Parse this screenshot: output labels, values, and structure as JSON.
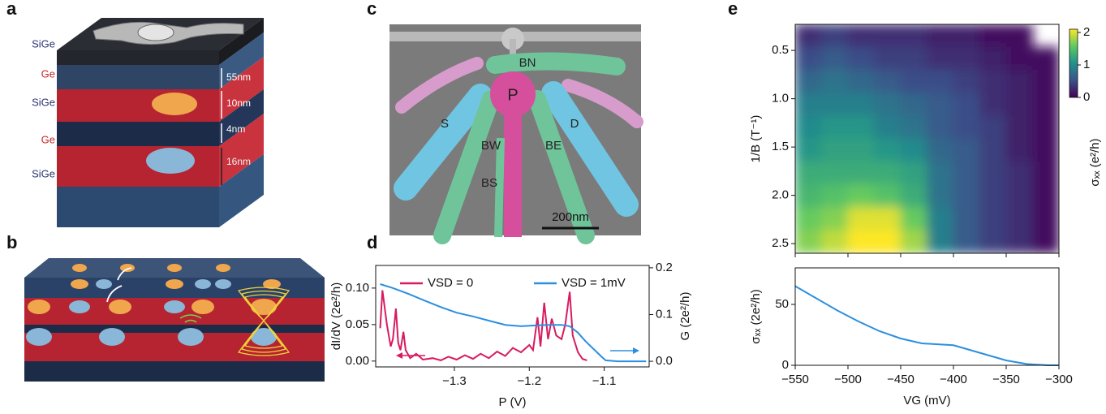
{
  "panel_labels": [
    "a",
    "b",
    "c",
    "d",
    "e"
  ],
  "panel_a": {
    "layers": [
      "SiGe",
      "Ge",
      "SiGe",
      "Ge",
      "SiGe"
    ],
    "thicknesses": [
      "55nm",
      "10nm",
      "4nm",
      "16nm"
    ]
  },
  "panel_c": {
    "gates": [
      "BN",
      "P",
      "S",
      "D",
      "BW",
      "BE",
      "BS"
    ],
    "scale_bar": "200nm"
  },
  "chart_data": [
    {
      "type": "line",
      "xlabel": "P (V)",
      "ylabel": "dI/dV (2e²/h)",
      "y2label": "G (2e²/h)",
      "xlim": [
        -1.405,
        -1.04
      ],
      "xticks": [
        {
          "value": -1.3,
          "label": "−1.3"
        },
        {
          "value": -1.2,
          "label": "−1.2"
        },
        {
          "value": -1.1,
          "label": "−1.1"
        }
      ],
      "ylim": [
        -0.008,
        0.131
      ],
      "yticks": [
        {
          "value": 0,
          "label": "0.00"
        },
        {
          "value": 0.05,
          "label": "0.05"
        },
        {
          "value": 0.1,
          "label": "0.10"
        }
      ],
      "y2lim": [
        -0.012,
        0.205
      ],
      "y2ticks": [
        {
          "value": 0,
          "label": "0.0"
        },
        {
          "value": 0.1,
          "label": "0.1"
        },
        {
          "value": 0.2,
          "label": "0.2"
        }
      ],
      "legend": "top",
      "series": [
        {
          "name": "VSD = 0",
          "color": "#d81b60",
          "x": [
            -1.399,
            -1.396,
            -1.39,
            -1.385,
            -1.382,
            -1.378,
            -1.375,
            -1.372,
            -1.368,
            -1.365,
            -1.359,
            -1.351,
            -1.342,
            -1.329,
            -1.318,
            -1.308,
            -1.297,
            -1.286,
            -1.275,
            -1.265,
            -1.254,
            -1.243,
            -1.232,
            -1.222,
            -1.211,
            -1.2,
            -1.195,
            -1.189,
            -1.185,
            -1.18,
            -1.175,
            -1.17,
            -1.164,
            -1.157,
            -1.152,
            -1.146,
            -1.142,
            -1.135,
            -1.129,
            -1.123
          ],
          "values": [
            0.045,
            0.097,
            0.05,
            0.02,
            0.03,
            0.072,
            0.025,
            0.015,
            0.04,
            0.015,
            0.004,
            0.01,
            0.002,
            0.004,
            0.001,
            0.006,
            0.002,
            0.008,
            0.003,
            0.01,
            0.004,
            0.013,
            0.007,
            0.018,
            0.012,
            0.022,
            0.015,
            0.06,
            0.02,
            0.08,
            0.03,
            0.058,
            0.035,
            0.03,
            0.05,
            0.095,
            0.035,
            0.012,
            0.003,
            0.001
          ]
        },
        {
          "name": "VSD = 1mV",
          "color": "#2b8fe0",
          "axis": "y2",
          "x": [
            -1.399,
            -1.383,
            -1.361,
            -1.34,
            -1.318,
            -1.297,
            -1.275,
            -1.254,
            -1.232,
            -1.211,
            -1.189,
            -1.173,
            -1.157,
            -1.146,
            -1.135,
            -1.125,
            -1.114,
            -1.103,
            -1.098,
            -1.082,
            -1.044
          ],
          "values": [
            0.165,
            0.157,
            0.144,
            0.13,
            0.116,
            0.104,
            0.096,
            0.087,
            0.078,
            0.075,
            0.077,
            0.078,
            0.078,
            0.075,
            0.061,
            0.043,
            0.026,
            0.009,
            0.002,
            0,
            0
          ]
        }
      ]
    },
    {
      "type": "heatmap",
      "ylabel": "1/B (T⁻¹)",
      "colorbar_label": "σₓₓ (e²/h)",
      "xlim": [
        -550,
        -300
      ],
      "xticks": [
        -550,
        -500,
        -450,
        -400,
        -350,
        -300
      ],
      "ylim": [
        0.23,
        2.6
      ],
      "y_inverted": true,
      "yticks": [
        0.5,
        {
          "value": 1,
          "label": "1.0"
        },
        1.5,
        {
          "value": 2,
          "label": "2.0"
        },
        2.5
      ],
      "x_edges": [
        -550,
        -525,
        -500,
        -475,
        -450,
        -425,
        -400,
        -375,
        -350,
        -325,
        -300
      ],
      "y_edges": [
        0.23,
        0.467,
        0.704,
        0.941,
        1.178,
        1.415,
        1.652,
        1.889,
        2.126,
        2.363,
        2.6
      ],
      "z": [
        [
          0.3,
          0.4,
          0.3,
          0.3,
          0.3,
          0.2,
          0.2,
          0.1,
          0.1,
          null
        ],
        [
          0.5,
          0.6,
          0.5,
          0.4,
          0.4,
          0.3,
          0.3,
          0.2,
          0.1,
          0.1
        ],
        [
          0.7,
          0.8,
          0.7,
          0.6,
          0.5,
          0.5,
          0.4,
          0.3,
          0.2,
          0.1
        ],
        [
          0.9,
          0.9,
          0.9,
          0.8,
          0.7,
          0.6,
          0.5,
          0.3,
          0.2,
          0.1
        ],
        [
          1.0,
          1.1,
          1.1,
          0.9,
          0.8,
          0.6,
          0.5,
          0.4,
          0.2,
          0.1
        ],
        [
          1.1,
          1.2,
          1.2,
          1.1,
          1.0,
          0.7,
          0.6,
          0.4,
          0.2,
          0.1
        ],
        [
          1.3,
          1.3,
          1.3,
          1.3,
          1.2,
          0.8,
          0.6,
          0.4,
          0.3,
          0.1
        ],
        [
          1.4,
          1.5,
          1.6,
          1.5,
          1.3,
          0.8,
          0.6,
          0.4,
          0.3,
          0.1
        ],
        [
          1.6,
          1.7,
          2.0,
          2.0,
          1.6,
          0.9,
          0.6,
          0.4,
          0.3,
          0.1
        ],
        [
          1.7,
          1.9,
          2.1,
          2.1,
          1.8,
          0.9,
          0.6,
          0.4,
          0.3,
          0.1
        ]
      ],
      "colormap": [
        "#440154",
        "#3b528b",
        "#21918c",
        "#5ec962",
        "#fde725"
      ],
      "clim": [
        0,
        2.1
      ],
      "cticks": [
        0,
        1,
        2
      ]
    },
    {
      "type": "line",
      "xlabel": "VG (mV)",
      "ylabel": "σₓₓ (2e²/h)",
      "xlim": [
        -550,
        -300
      ],
      "xticks": [
        {
          "value": -550,
          "label": "−550"
        },
        {
          "value": -500,
          "label": "−500"
        },
        {
          "value": -450,
          "label": "−450"
        },
        {
          "value": -400,
          "label": "−400"
        },
        {
          "value": -350,
          "label": "−350"
        },
        {
          "value": -300,
          "label": "−300"
        }
      ],
      "ylim": [
        0,
        80
      ],
      "yticks": [
        0,
        50
      ],
      "series": [
        {
          "color": "#2b8fe0",
          "x": [
            -550,
            -530,
            -510,
            -490,
            -470,
            -450,
            -430,
            -410,
            -400,
            -390,
            -370,
            -350,
            -330,
            -310,
            -300
          ],
          "values": [
            65,
            55,
            45,
            36,
            28,
            22,
            18,
            17,
            16.5,
            14,
            9,
            4,
            1,
            0,
            0
          ]
        }
      ]
    }
  ]
}
